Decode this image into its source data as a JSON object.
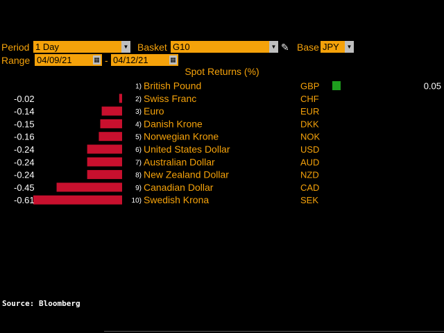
{
  "controls": {
    "period_label": "Period",
    "period_value": "1 Day",
    "basket_label": "Basket",
    "basket_value": "G10",
    "base_label": "Base",
    "base_value": "JPY",
    "range_label": "Range",
    "range_start": "04/09/21",
    "range_sep": "-",
    "range_end": "04/12/21",
    "dropdown_icon": "triangle-down-icon",
    "calendar_icon": "calendar-icon",
    "edit_icon": "pencil-icon"
  },
  "source": "Source: Bloomberg",
  "colors": {
    "positive": "#1e9e1e",
    "negative": "#c8102e",
    "accent": "#f5a20a"
  },
  "chart_data": {
    "type": "bar",
    "orientation": "horizontal",
    "title": "Spot Returns (%)",
    "categories": [
      "British Pound",
      "Swiss Franc",
      "Euro",
      "Danish Krone",
      "Norwegian Krone",
      "United States Dollar",
      "Australian Dollar",
      "New Zealand Dollar",
      "Canadian Dollar",
      "Swedish Krona"
    ],
    "ranks": [
      "1)",
      "2)",
      "3)",
      "4)",
      "5)",
      "6)",
      "7)",
      "8)",
      "9)",
      "10)"
    ],
    "codes": [
      "GBP",
      "CHF",
      "EUR",
      "DKK",
      "NOK",
      "USD",
      "AUD",
      "NZD",
      "CAD",
      "SEK"
    ],
    "values": [
      0.05,
      -0.02,
      -0.14,
      -0.15,
      -0.16,
      -0.24,
      -0.24,
      -0.24,
      -0.45,
      -0.61
    ],
    "value_labels": [
      "0.05",
      "-0.02",
      "-0.14",
      "-0.15",
      "-0.16",
      "-0.24",
      "-0.24",
      "-0.24",
      "-0.45",
      "-0.61"
    ]
  }
}
